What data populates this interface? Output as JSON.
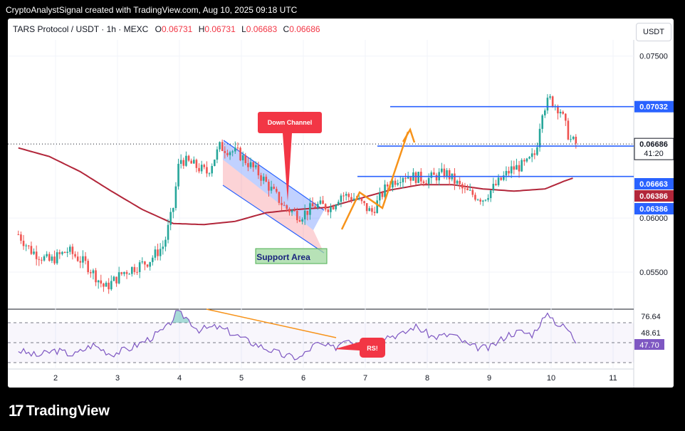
{
  "header": {
    "credit": "CryptoAnalystSignal created with TradingView.com, Aug 10, 2025 09:18 UTC"
  },
  "legend": {
    "symbol": "TARS Protocol / USDT · 1h · MEXC",
    "o_label": "O",
    "o": "0.06731",
    "h_label": "H",
    "h": "0.06731",
    "l_label": "L",
    "l": "0.06683",
    "c_label": "C",
    "c": "0.06686"
  },
  "currency": "USDT",
  "annotations": {
    "down_channel": "Down Channel",
    "support_area": "Support Area",
    "rsi_tag": "RS!"
  },
  "footer": {
    "brand": "TradingView"
  },
  "colors": {
    "up": "#26a69a",
    "down": "#ef5350",
    "ma": "#b2263a",
    "rsi": "#7e57c2",
    "blue_line": "#2962ff",
    "orange": "#f7931a"
  },
  "chart_data": [
    {
      "type": "candlestick",
      "ylim": [
        0.0517,
        0.0765
      ],
      "y_ticks": [
        "0.07500",
        "0.06000",
        "0.05500"
      ],
      "x_ticks": [
        "2",
        "3",
        "4",
        "5",
        "6",
        "7",
        "8",
        "9",
        "10",
        "11"
      ],
      "price_labels": [
        {
          "text": "0.07032",
          "value": 0.07032
        },
        {
          "text": "0.06686",
          "value": 0.06686,
          "sub": "41:20"
        },
        {
          "text": "0.06663",
          "value": 0.06663
        },
        {
          "text": "0.06386",
          "value": 0.06386
        },
        {
          "text": "0.06386",
          "value": 0.06386
        }
      ],
      "horizontal_levels": [
        0.07032,
        0.06667,
        0.06386
      ],
      "price_anchors": [
        [
          1.4,
          0.0585
        ],
        [
          1.6,
          0.057
        ],
        [
          1.9,
          0.056
        ],
        [
          2.2,
          0.057
        ],
        [
          2.5,
          0.0557
        ],
        [
          2.8,
          0.0535
        ],
        [
          3.1,
          0.055
        ],
        [
          3.5,
          0.056
        ],
        [
          3.75,
          0.0575
        ],
        [
          3.9,
          0.061
        ],
        [
          4.0,
          0.0655
        ],
        [
          4.2,
          0.065
        ],
        [
          4.45,
          0.0642
        ],
        [
          4.65,
          0.0666
        ],
        [
          4.95,
          0.066
        ],
        [
          5.3,
          0.064
        ],
        [
          5.7,
          0.061
        ],
        [
          5.95,
          0.0602
        ],
        [
          6.2,
          0.0612
        ],
        [
          6.45,
          0.061
        ],
        [
          6.6,
          0.0622
        ],
        [
          6.85,
          0.0618
        ],
        [
          7.1,
          0.0605
        ],
        [
          7.35,
          0.063
        ],
        [
          7.6,
          0.064
        ],
        [
          8.0,
          0.0636
        ],
        [
          8.3,
          0.0642
        ],
        [
          8.6,
          0.0625
        ],
        [
          8.9,
          0.0618
        ],
        [
          9.1,
          0.063
        ],
        [
          9.35,
          0.0645
        ],
        [
          9.6,
          0.065
        ],
        [
          9.75,
          0.066
        ],
        [
          9.85,
          0.07
        ],
        [
          9.98,
          0.071
        ],
        [
          10.15,
          0.07
        ],
        [
          10.3,
          0.0673
        ],
        [
          10.4,
          0.0669
        ]
      ],
      "ma_anchors": [
        [
          1.4,
          0.0665
        ],
        [
          1.9,
          0.0657
        ],
        [
          2.4,
          0.0643
        ],
        [
          2.9,
          0.0625
        ],
        [
          3.4,
          0.0608
        ],
        [
          3.9,
          0.0595
        ],
        [
          4.4,
          0.0594
        ],
        [
          4.9,
          0.0597
        ],
        [
          5.4,
          0.0605
        ],
        [
          5.9,
          0.0608
        ],
        [
          6.4,
          0.061
        ],
        [
          6.9,
          0.0618
        ],
        [
          7.4,
          0.0626
        ],
        [
          7.9,
          0.0631
        ],
        [
          8.4,
          0.0631
        ],
        [
          8.9,
          0.0627
        ],
        [
          9.4,
          0.0625
        ],
        [
          9.9,
          0.0627
        ],
        [
          10.2,
          0.0634
        ],
        [
          10.4,
          0.0638
        ]
      ]
    },
    {
      "type": "line",
      "name": "RSI",
      "ylim": [
        18,
        82
      ],
      "y_ticks": [
        "76.64"
      ],
      "value_labels": [
        "48.61",
        "47.70"
      ],
      "anchors": [
        [
          1.4,
          38
        ],
        [
          1.7,
          32
        ],
        [
          2.0,
          38
        ],
        [
          2.3,
          33
        ],
        [
          2.6,
          44
        ],
        [
          2.9,
          34
        ],
        [
          3.2,
          40
        ],
        [
          3.5,
          50
        ],
        [
          3.8,
          62
        ],
        [
          3.95,
          78
        ],
        [
          4.1,
          74
        ],
        [
          4.3,
          60
        ],
        [
          4.6,
          63
        ],
        [
          4.8,
          58
        ],
        [
          5.1,
          48
        ],
        [
          5.4,
          40
        ],
        [
          5.7,
          32
        ],
        [
          5.95,
          30
        ],
        [
          6.2,
          45
        ],
        [
          6.5,
          40
        ],
        [
          6.7,
          52
        ],
        [
          7.0,
          38
        ],
        [
          7.3,
          53
        ],
        [
          7.6,
          55
        ],
        [
          7.8,
          64
        ],
        [
          8.1,
          52
        ],
        [
          8.4,
          55
        ],
        [
          8.7,
          42
        ],
        [
          9.0,
          40
        ],
        [
          9.3,
          55
        ],
        [
          9.5,
          58
        ],
        [
          9.7,
          55
        ],
        [
          9.85,
          70
        ],
        [
          9.98,
          76
        ],
        [
          10.1,
          66
        ],
        [
          10.25,
          62
        ],
        [
          10.4,
          47.7
        ]
      ]
    }
  ]
}
